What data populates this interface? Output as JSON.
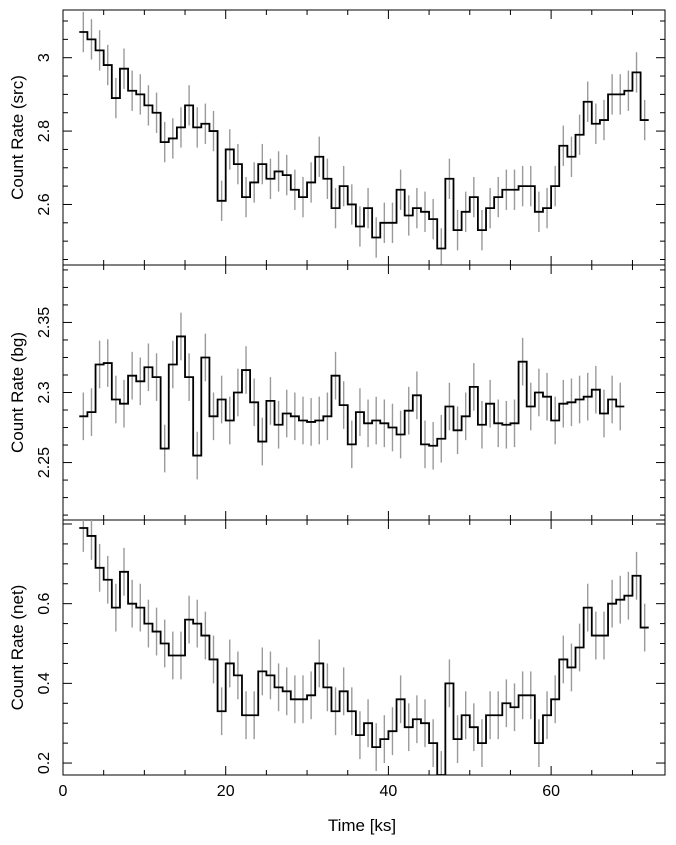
{
  "chart_data": [
    {
      "type": "line",
      "ylabel": "Count Rate (src)",
      "xlim": [
        0,
        74
      ],
      "ylim": [
        2.435,
        3.13
      ],
      "yticks": [
        2.6,
        2.8,
        3
      ],
      "ytick_labels": [
        "2.6",
        "2.8",
        "3"
      ],
      "series": [
        {
          "values": [
            3.07,
            3.05,
            3.02,
            2.98,
            2.89,
            2.97,
            2.91,
            2.9,
            2.87,
            2.85,
            2.77,
            2.78,
            2.81,
            2.87,
            2.81,
            2.82,
            2.8,
            2.61,
            2.75,
            2.71,
            2.62,
            2.66,
            2.71,
            2.67,
            2.69,
            2.68,
            2.64,
            2.62,
            2.66,
            2.73,
            2.67,
            2.59,
            2.65,
            2.6,
            2.54,
            2.59,
            2.51,
            2.55,
            2.55,
            2.64,
            2.57,
            2.59,
            2.58,
            2.56,
            2.48,
            2.67,
            2.53,
            2.58,
            2.62,
            2.53,
            2.59,
            2.62,
            2.64,
            2.64,
            2.65,
            2.65,
            2.58,
            2.59,
            2.65,
            2.76,
            2.73,
            2.79,
            2.88,
            2.82,
            2.83,
            2.9,
            2.9,
            2.91,
            2.96,
            2.83
          ],
          "errors": 0.055
        }
      ]
    },
    {
      "type": "line",
      "ylabel": "Count Rate (bg)",
      "xlim": [
        0,
        74
      ],
      "ylim": [
        2.209,
        2.391
      ],
      "yticks": [
        2.25,
        2.3,
        2.35
      ],
      "ytick_labels": [
        "2.25",
        "2.3",
        "2.35"
      ],
      "series": [
        {
          "values": [
            2.283,
            2.286,
            2.32,
            2.321,
            2.295,
            2.292,
            2.312,
            2.308,
            2.318,
            2.311,
            2.26,
            2.32,
            2.34,
            2.311,
            2.255,
            2.325,
            2.283,
            2.295,
            2.28,
            2.3,
            2.316,
            2.293,
            2.265,
            2.294,
            2.277,
            2.285,
            2.283,
            2.28,
            2.279,
            2.28,
            2.283,
            2.312,
            2.291,
            2.263,
            2.286,
            2.278,
            2.28,
            2.278,
            2.275,
            2.27,
            2.287,
            2.298,
            2.263,
            2.262,
            2.267,
            2.29,
            2.273,
            2.283,
            2.304,
            2.277,
            2.292,
            2.278,
            2.277,
            2.278,
            2.322,
            2.29,
            2.3,
            2.297,
            2.28,
            2.292,
            2.293,
            2.295,
            2.297,
            2.302,
            2.285,
            2.295,
            2.29
          ],
          "errors": 0.017
        }
      ]
    },
    {
      "type": "line",
      "ylabel": "Count Rate (net)",
      "xlim": [
        0,
        74
      ],
      "ylim": [
        0.17,
        0.81
      ],
      "yticks": [
        0.2,
        0.4,
        0.6
      ],
      "ytick_labels": [
        "0.2",
        "0.4",
        "0.6"
      ],
      "series": [
        {
          "values": [
            0.79,
            0.77,
            0.69,
            0.66,
            0.59,
            0.68,
            0.6,
            0.59,
            0.55,
            0.53,
            0.5,
            0.47,
            0.47,
            0.56,
            0.55,
            0.52,
            0.46,
            0.33,
            0.45,
            0.42,
            0.32,
            0.32,
            0.43,
            0.42,
            0.39,
            0.38,
            0.36,
            0.36,
            0.37,
            0.45,
            0.39,
            0.33,
            0.38,
            0.33,
            0.27,
            0.3,
            0.24,
            0.26,
            0.28,
            0.36,
            0.29,
            0.31,
            0.3,
            0.25,
            0.17,
            0.4,
            0.26,
            0.32,
            0.29,
            0.25,
            0.32,
            0.32,
            0.35,
            0.34,
            0.37,
            0.37,
            0.25,
            0.32,
            0.36,
            0.46,
            0.44,
            0.49,
            0.59,
            0.52,
            0.52,
            0.6,
            0.61,
            0.62,
            0.67,
            0.54
          ],
          "errors": 0.06
        }
      ]
    }
  ],
  "xaxis": {
    "label": "Time [ks]",
    "ticks": [
      0,
      20,
      40,
      60
    ],
    "tick_labels": [
      "0",
      "20",
      "40",
      "60"
    ]
  }
}
